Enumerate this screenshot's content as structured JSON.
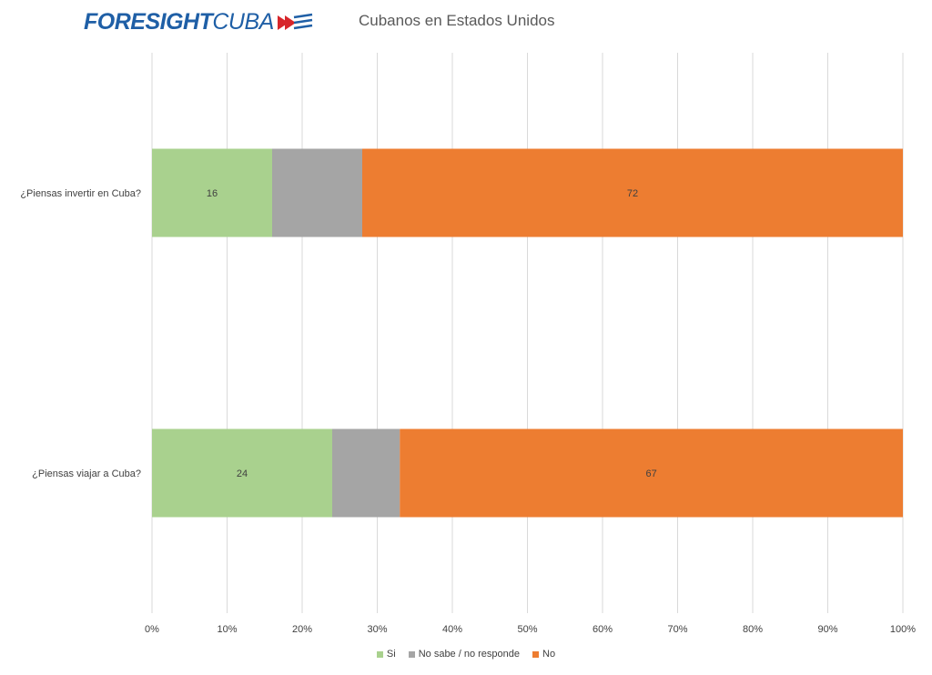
{
  "header": {
    "logo_bold": "FORESIGHT",
    "logo_light": "CUBA",
    "title": "Cubanos en Estados Unidos"
  },
  "chart_data": {
    "type": "bar",
    "orientation": "horizontal",
    "stacked": true,
    "title": "Cubanos en Estados Unidos",
    "categories": [
      "¿Piensas invertir en Cuba?",
      "¿Piensas viajar a Cuba?"
    ],
    "series": [
      {
        "name": "Si",
        "values": [
          16,
          24
        ],
        "color": "#a9d18e",
        "labels": [
          "16",
          "24"
        ]
      },
      {
        "name": "No sabe / no responde",
        "values": [
          12,
          9
        ],
        "color": "#a5a5a5",
        "labels": [
          "",
          ""
        ]
      },
      {
        "name": "No",
        "values": [
          72,
          67
        ],
        "color": "#ed7d31",
        "labels": [
          "72",
          "67"
        ]
      }
    ],
    "xlim": [
      0,
      100
    ],
    "xticks": [
      "0%",
      "10%",
      "20%",
      "30%",
      "40%",
      "50%",
      "60%",
      "70%",
      "80%",
      "90%",
      "100%"
    ],
    "grid": true,
    "legend_position": "bottom"
  }
}
